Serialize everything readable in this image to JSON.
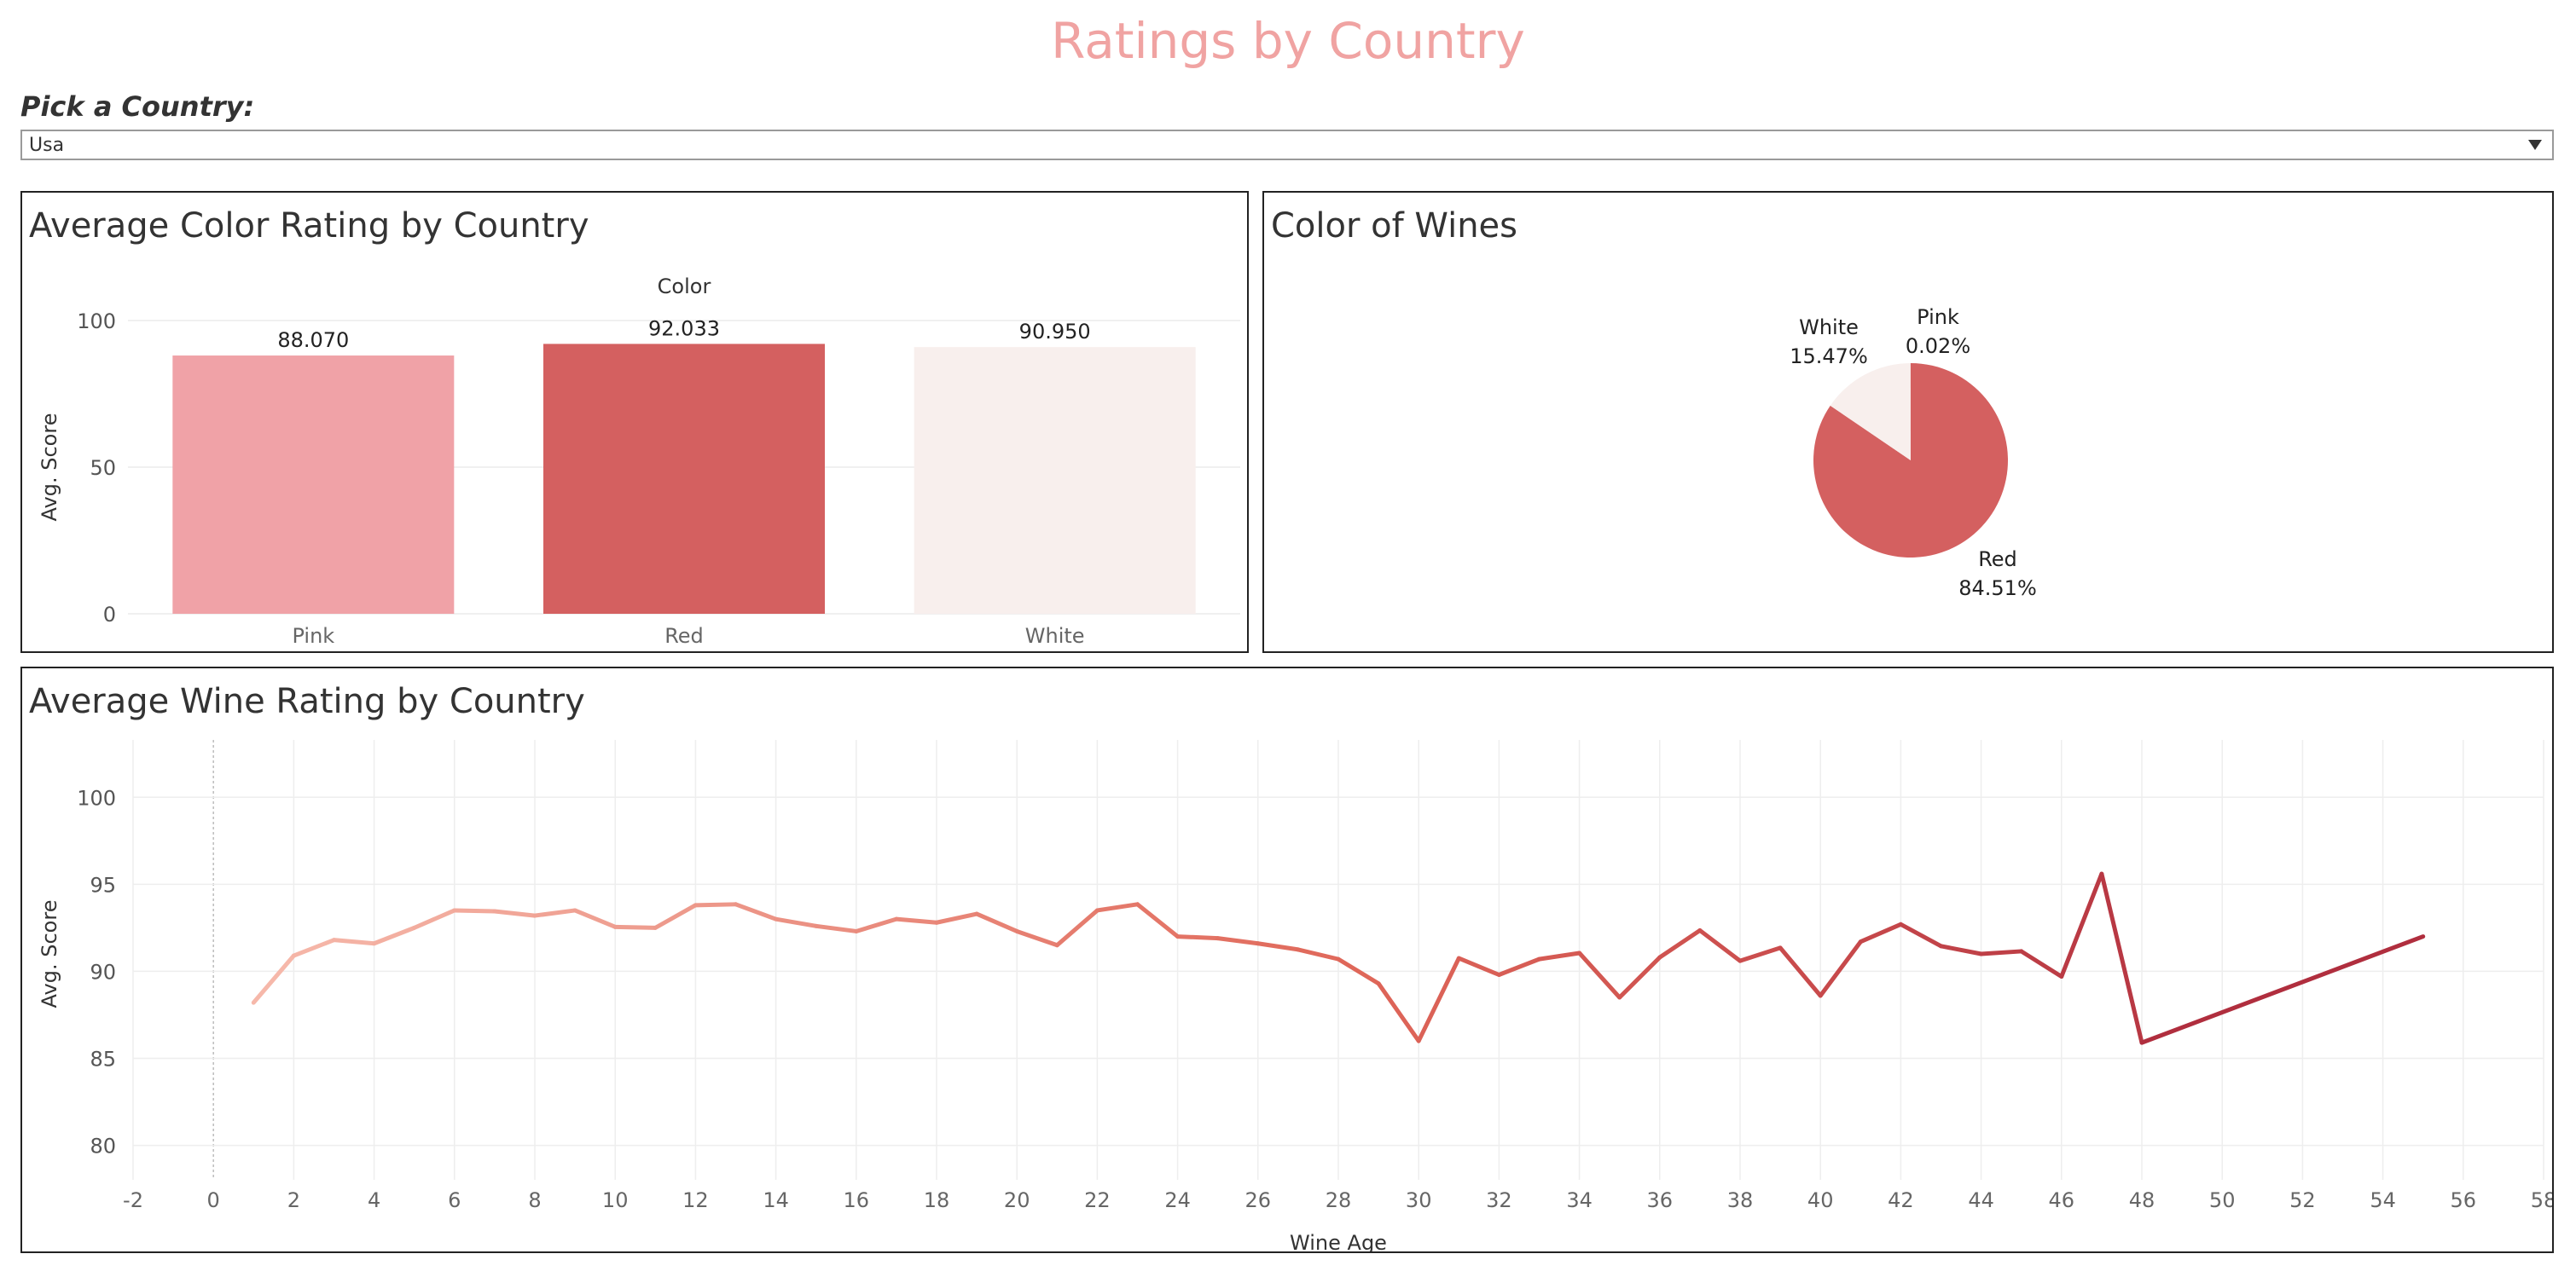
{
  "page": {
    "title": "Ratings by Country"
  },
  "filter": {
    "label": "Pick a Country:",
    "selected": "Usa"
  },
  "colors": {
    "title": "#f0a3a2",
    "pink": "#f0a2a7",
    "red": "#d46060",
    "white": "#f8efed",
    "line_start": "#f6b9ab",
    "line_mid": "#e0685a",
    "line_end": "#a9253a"
  },
  "chart_data": [
    {
      "id": "avg-color-rating",
      "type": "bar",
      "title": "Average Color Rating by Country",
      "column_header": "Color",
      "ylabel": "Avg. Score",
      "categories": [
        "Pink",
        "Red",
        "White"
      ],
      "values": [
        88.07,
        92.033,
        90.95
      ],
      "value_labels": [
        "88.070",
        "92.033",
        "90.950"
      ],
      "ylim": [
        0,
        100
      ],
      "yticks": [
        0,
        50,
        100
      ],
      "bar_colors": [
        "#f0a2a7",
        "#d46060",
        "#f8efed"
      ],
      "grid": true
    },
    {
      "id": "color-of-wines",
      "type": "pie",
      "title": "Color of Wines",
      "slices": [
        {
          "name": "Red",
          "value": 84.51,
          "label": "84.51%",
          "color": "#d46060"
        },
        {
          "name": "White",
          "value": 15.47,
          "label": "15.47%",
          "color": "#f8efed"
        },
        {
          "name": "Pink",
          "value": 0.02,
          "label": "0.02%",
          "color": "#f0a2a7"
        }
      ]
    },
    {
      "id": "avg-wine-rating",
      "type": "line",
      "title": "Average Wine Rating by Country",
      "xlabel": "Wine Age",
      "ylabel": "Avg. Score",
      "xlim": [
        -2,
        58
      ],
      "ylim": [
        79,
        103
      ],
      "xticks": [
        -2,
        0,
        2,
        4,
        6,
        8,
        10,
        12,
        14,
        16,
        18,
        20,
        22,
        24,
        26,
        28,
        30,
        32,
        34,
        36,
        38,
        40,
        42,
        44,
        46,
        48,
        50,
        52,
        54,
        56,
        58
      ],
      "yticks": [
        80,
        85,
        90,
        95,
        100
      ],
      "grid": true,
      "x": [
        1,
        2,
        3,
        4,
        5,
        6,
        7,
        8,
        9,
        10,
        11,
        12,
        13,
        14,
        15,
        16,
        17,
        18,
        19,
        20,
        21,
        22,
        23,
        24,
        25,
        26,
        27,
        28,
        29,
        30,
        31,
        32,
        33,
        34,
        35,
        36,
        37,
        38,
        39,
        40,
        41,
        42,
        43,
        44,
        45,
        46,
        47,
        48,
        55
      ],
      "y": [
        88.2,
        90.9,
        91.8,
        91.6,
        92.5,
        93.5,
        93.45,
        93.2,
        93.5,
        92.55,
        92.5,
        93.8,
        93.85,
        93.0,
        92.6,
        92.3,
        93.0,
        92.8,
        93.3,
        92.3,
        91.5,
        93.5,
        93.85,
        92.0,
        91.9,
        91.6,
        91.25,
        90.7,
        89.3,
        86.0,
        90.75,
        89.8,
        90.7,
        91.05,
        88.5,
        90.8,
        92.35,
        90.6,
        91.35,
        88.6,
        91.7,
        92.7,
        91.45,
        91.0,
        91.15,
        89.7,
        95.6,
        85.9,
        92.0
      ]
    }
  ]
}
